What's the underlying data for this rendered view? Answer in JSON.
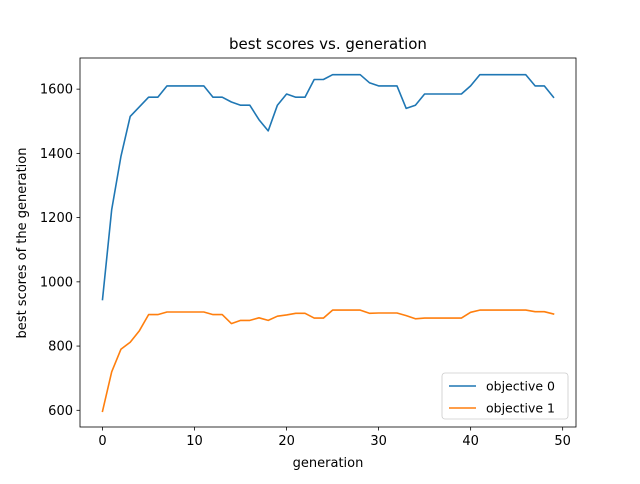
{
  "chart_data": {
    "type": "line",
    "title": "best scores vs. generation",
    "xlabel": "generation",
    "ylabel": "best scores of the generation",
    "xlim": [
      -2.45,
      51.45
    ],
    "ylim": [
      548,
      1697
    ],
    "xticks": [
      0,
      10,
      20,
      30,
      40,
      50
    ],
    "yticks": [
      600,
      800,
      1000,
      1200,
      1400,
      1600
    ],
    "legend_position": "lower-right",
    "grid": false,
    "x": [
      0,
      1,
      2,
      3,
      4,
      5,
      6,
      7,
      8,
      9,
      10,
      11,
      12,
      13,
      14,
      15,
      16,
      17,
      18,
      19,
      20,
      21,
      22,
      23,
      24,
      25,
      26,
      27,
      28,
      29,
      30,
      31,
      32,
      33,
      34,
      35,
      36,
      37,
      38,
      39,
      40,
      41,
      42,
      43,
      44,
      45,
      46,
      47,
      48,
      49
    ],
    "series": [
      {
        "name": "objective 0",
        "color": "#1f77b4",
        "values": [
          945,
          1225,
          1390,
          1515,
          1545,
          1575,
          1575,
          1610,
          1610,
          1610,
          1610,
          1610,
          1575,
          1575,
          1560,
          1550,
          1550,
          1505,
          1470,
          1550,
          1585,
          1575,
          1575,
          1630,
          1630,
          1645,
          1645,
          1645,
          1645,
          1620,
          1610,
          1610,
          1610,
          1540,
          1550,
          1585,
          1585,
          1585,
          1585,
          1585,
          1610,
          1645,
          1645,
          1645,
          1645,
          1645,
          1645,
          1610,
          1610,
          1575
        ]
      },
      {
        "name": "objective 1",
        "color": "#ff7f0e",
        "values": [
          597,
          720,
          790,
          812,
          848,
          898,
          898,
          906,
          906,
          906,
          906,
          906,
          898,
          898,
          870,
          880,
          880,
          888,
          880,
          893,
          897,
          902,
          902,
          887,
          887,
          912,
          912,
          912,
          912,
          902,
          903,
          903,
          903,
          895,
          885,
          887,
          887,
          887,
          887,
          887,
          905,
          912,
          912,
          912,
          912,
          912,
          912,
          907,
          907,
          900
        ]
      }
    ]
  }
}
